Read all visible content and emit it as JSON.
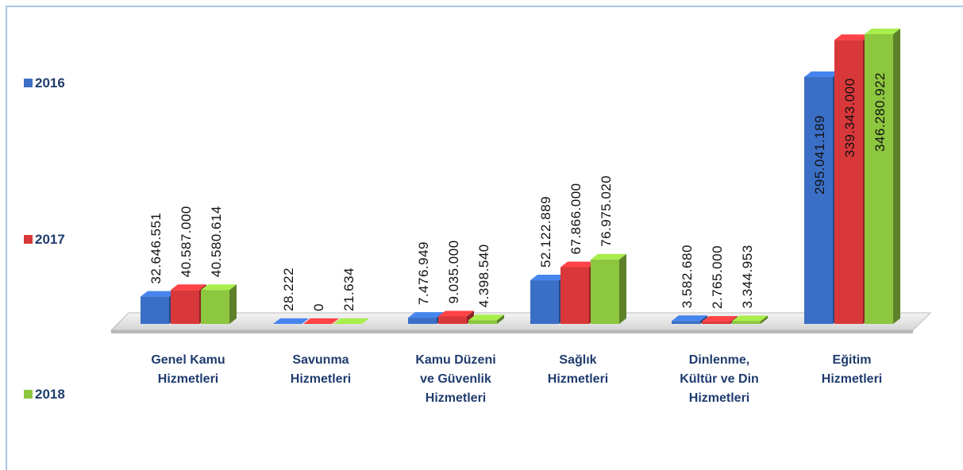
{
  "chart_data": {
    "type": "bar3d",
    "categories": [
      "Genel Kamu\nHizmetleri",
      "Savunma\nHizmetleri",
      "Kamu Düzeni\nve Güvenlik\nHizmetleri",
      "Sağlık\nHizmetleri",
      "Dinlenme,\nKültür ve Din\nHizmetleri",
      "Eğitim\nHizmetleri"
    ],
    "series": [
      {
        "name": "2016",
        "color": "#3b6fc6",
        "values": [
          32646551,
          28222,
          7476949,
          52122889,
          3582680,
          295041189
        ],
        "value_labels": [
          "32.646.551",
          "28.222",
          "7.476.949",
          "52.122.889",
          "3.582.680",
          "295.041.189"
        ]
      },
      {
        "name": "2017",
        "color": "#d9383a",
        "values": [
          40587000,
          0,
          9035000,
          67866000,
          2765000,
          339343000
        ],
        "value_labels": [
          "40.587.000",
          "0",
          "9.035.000",
          "67.866.000",
          "2.765.000",
          "339.343.000"
        ]
      },
      {
        "name": "2018",
        "color": "#8dc63f",
        "values": [
          40580614,
          21634,
          4398540,
          76975020,
          3344953,
          346280922
        ],
        "value_labels": [
          "40.580.614",
          "21.634",
          "4.398.540",
          "76.975.020",
          "3.344.953",
          "346.280.922"
        ]
      }
    ]
  }
}
